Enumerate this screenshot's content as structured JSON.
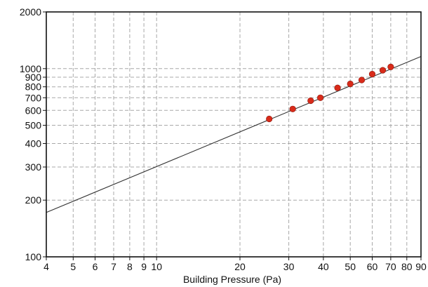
{
  "chart_data": {
    "type": "scatter",
    "xlabel": "Building Pressure (Pa)",
    "ylabel": "",
    "x_scale": "log",
    "y_scale": "log",
    "xlim": [
      4,
      90
    ],
    "ylim": [
      100,
      2000
    ],
    "grid": true,
    "x_ticks": [
      4,
      5,
      6,
      7,
      8,
      9,
      10,
      20,
      30,
      40,
      50,
      60,
      70,
      80,
      90
    ],
    "x_tick_labels": [
      "4",
      "5",
      "6",
      "7",
      "8",
      "9",
      "10",
      "20",
      "30",
      "40",
      "50",
      "60",
      "70",
      "80",
      "90"
    ],
    "y_ticks": [
      100,
      200,
      300,
      400,
      500,
      600,
      700,
      800,
      900,
      1000,
      2000
    ],
    "y_tick_labels": [
      "100",
      "200",
      "300",
      "400",
      "500",
      "600",
      "700",
      "800",
      "900",
      "1000",
      "2000"
    ],
    "series": [
      {
        "type": "scatter",
        "color": "#d92b1a",
        "x": [
          25.5,
          31,
          36,
          39,
          45,
          50,
          55,
          60,
          65.5,
          70
        ],
        "y": [
          540,
          610,
          675,
          700,
          790,
          830,
          870,
          935,
          980,
          1020
        ]
      },
      {
        "type": "line",
        "color": "#333333",
        "x": [
          4,
          90
        ],
        "y": [
          172,
          1160
        ]
      }
    ]
  }
}
